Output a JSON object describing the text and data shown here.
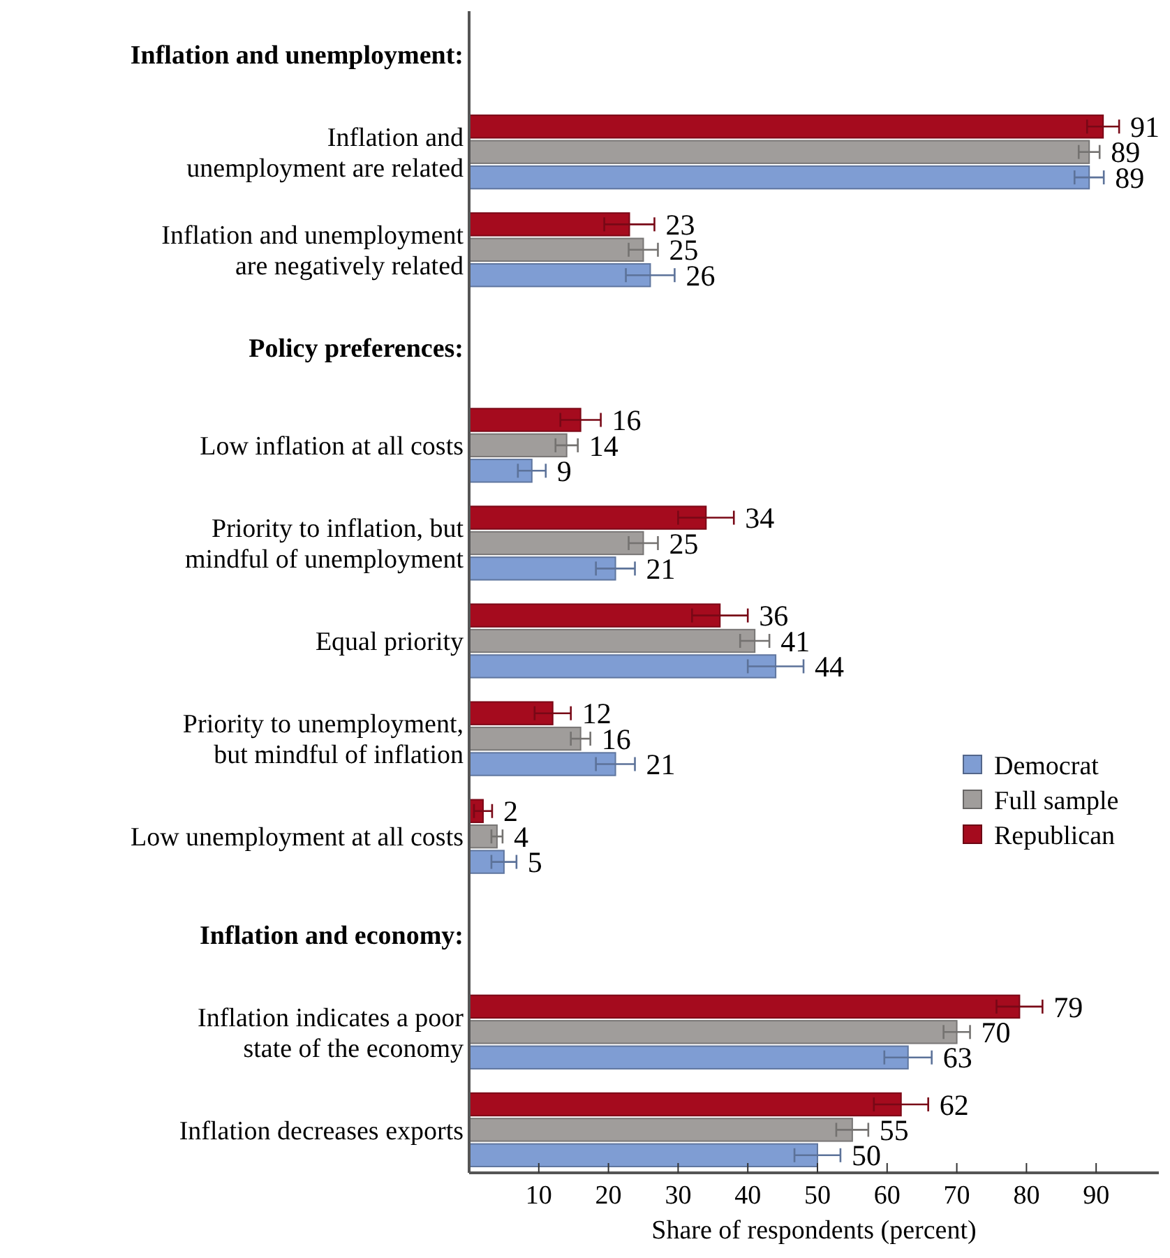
{
  "chart_data": {
    "type": "bar",
    "orientation": "horizontal",
    "xlabel": "Share of respondents (percent)",
    "annotations": [
      "Inflation and unemployment:",
      "Policy preferences:",
      "Inflation and economy:"
    ],
    "categories": [
      null,
      "Inflation and unemployment are related",
      "Inflation and unemployment are negatively related",
      null,
      "Low inflation at all costs",
      "Priority to inflation, but mindful of unemployment",
      "Equal priority",
      "Priority to unemployment, but mindful of inflation",
      "Low unemployment at all costs",
      null,
      "Inflation indicates a poor state of the economy",
      "Inflation decreases exports"
    ],
    "series": [
      {
        "name": "Democrat",
        "color": "#7f9dd3",
        "values": [
          null,
          89,
          26,
          null,
          9,
          21,
          44,
          21,
          5,
          null,
          63,
          50
        ],
        "errors": [
          null,
          2.1,
          3.5,
          null,
          2.0,
          2.8,
          4.0,
          2.8,
          1.8,
          null,
          3.4,
          3.3
        ]
      },
      {
        "name": "Full sample",
        "color": "#a09d9b",
        "values": [
          null,
          89,
          25,
          null,
          14,
          25,
          41,
          16,
          4,
          null,
          70,
          55
        ],
        "errors": [
          null,
          1.5,
          2.1,
          null,
          1.6,
          2.1,
          2.1,
          1.4,
          0.8,
          null,
          1.9,
          2.3
        ]
      },
      {
        "name": "Republican",
        "color": "#a50b1e",
        "values": [
          null,
          91,
          23,
          null,
          16,
          34,
          36,
          12,
          2,
          null,
          79,
          62
        ],
        "errors": [
          null,
          2.3,
          3.6,
          null,
          2.9,
          4.0,
          4.0,
          2.6,
          1.3,
          null,
          3.3,
          3.9
        ]
      }
    ],
    "xlim": [
      0,
      99
    ],
    "xticks": [
      10,
      20,
      30,
      40,
      50,
      60,
      70,
      80,
      90
    ],
    "data_labels": true,
    "legend": "right",
    "grid": false
  }
}
